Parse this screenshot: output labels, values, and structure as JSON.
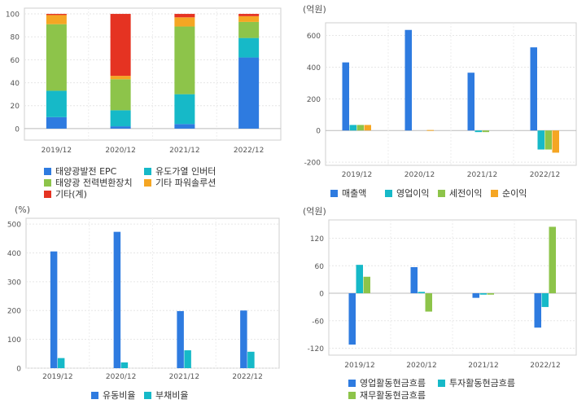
{
  "colors": {
    "blue": "#2E7BE0",
    "teal": "#16B9C8",
    "green": "#8DC44A",
    "orange": "#F5A623",
    "red": "#E53322"
  },
  "chart_data": [
    {
      "id": "c1",
      "type": "bar",
      "stacked": true,
      "unit": "",
      "categories": [
        "2019/12",
        "2020/12",
        "2021/12",
        "2022/12"
      ],
      "ylim": [
        -10,
        105
      ],
      "yticks": [
        0,
        20,
        40,
        60,
        80,
        100
      ],
      "grid": true,
      "series": [
        {
          "name": "태양광발전 EPC",
          "color": "blue",
          "values": [
            10,
            2,
            4,
            62
          ]
        },
        {
          "name": "유도가열 인버터",
          "color": "teal",
          "values": [
            23,
            14,
            26,
            17
          ]
        },
        {
          "name": "태양광 전력변환장치",
          "color": "green",
          "values": [
            58,
            27,
            59,
            14
          ]
        },
        {
          "name": "기타 파워솔루션",
          "color": "orange",
          "values": [
            8,
            3,
            8,
            5
          ]
        },
        {
          "name": "기타(계)",
          "color": "red",
          "values": [
            1,
            54,
            3,
            2
          ]
        }
      ]
    },
    {
      "id": "c2",
      "type": "bar",
      "stacked": false,
      "unit": "(억원)",
      "categories": [
        "2019/12",
        "2020/12",
        "2021/12",
        "2022/12"
      ],
      "ylim": [
        -220,
        680
      ],
      "yticks": [
        -200,
        0,
        200,
        400,
        600
      ],
      "grid": true,
      "series": [
        {
          "name": "매출액",
          "color": "blue",
          "values": [
            430,
            635,
            365,
            525
          ]
        },
        {
          "name": "영업이익",
          "color": "teal",
          "values": [
            35,
            0,
            -10,
            -120
          ]
        },
        {
          "name": "세전이익",
          "color": "green",
          "values": [
            35,
            0,
            -10,
            -120
          ]
        },
        {
          "name": "순이익",
          "color": "orange",
          "values": [
            35,
            3,
            0,
            -140
          ]
        }
      ]
    },
    {
      "id": "c3",
      "type": "bar",
      "stacked": false,
      "unit": "(%)",
      "categories": [
        "2019/12",
        "2020/12",
        "2021/12",
        "2022/12"
      ],
      "ylim": [
        0,
        520
      ],
      "yticks": [
        0,
        100,
        200,
        300,
        400,
        500
      ],
      "grid": true,
      "series": [
        {
          "name": "유동비율",
          "color": "blue",
          "values": [
            405,
            473,
            198,
            200
          ]
        },
        {
          "name": "부채비율",
          "color": "teal",
          "values": [
            35,
            20,
            62,
            57
          ]
        }
      ]
    },
    {
      "id": "c4",
      "type": "bar",
      "stacked": false,
      "unit": "(억원)",
      "categories": [
        "2019/12",
        "2020/12",
        "2021/12",
        "2022/12"
      ],
      "ylim": [
        -135,
        160
      ],
      "yticks": [
        -120,
        -60,
        0,
        60,
        120
      ],
      "grid": true,
      "series": [
        {
          "name": "영업활동현금흐름",
          "color": "blue",
          "values": [
            -112,
            57,
            -10,
            -75
          ]
        },
        {
          "name": "투자활동현금흐름",
          "color": "teal",
          "values": [
            62,
            3,
            -3,
            -30
          ]
        },
        {
          "name": "재무활동현금흐름",
          "color": "green",
          "values": [
            36,
            -40,
            -3,
            145
          ]
        }
      ]
    }
  ]
}
